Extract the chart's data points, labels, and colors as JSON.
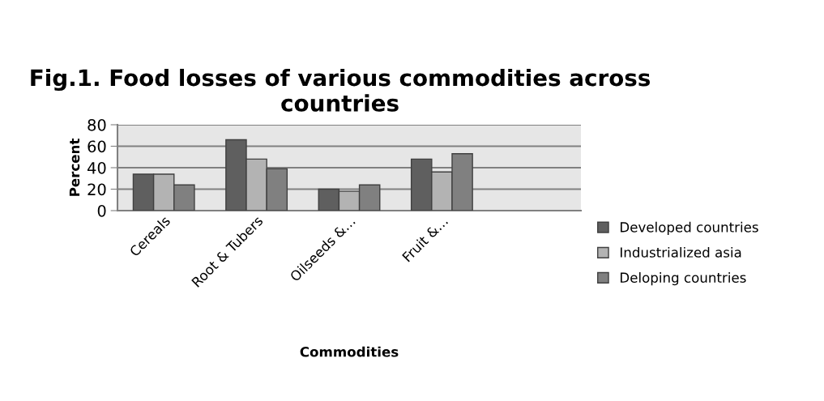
{
  "chart_data": {
    "type": "bar",
    "title": "Fig.1. Food losses of various commodities across countries",
    "xlabel": "Commodities",
    "ylabel": "Percent",
    "categories": [
      "Cereals",
      "Root & Tubers",
      "Oilseeds &…",
      "Fruit &…",
      null
    ],
    "series": [
      {
        "name": "Developed countries",
        "color": "#5f5f5f",
        "values": [
          34,
          66,
          20,
          48,
          null
        ]
      },
      {
        "name": "Industrialized asia",
        "color": "#b3b3b3",
        "values": [
          34,
          48,
          18,
          36,
          null
        ]
      },
      {
        "name": "Deloping countries",
        "color": "#808080",
        "values": [
          24,
          39,
          24,
          53,
          null
        ]
      }
    ],
    "ylim": [
      0,
      80
    ],
    "yticks": [
      0,
      20,
      40,
      60,
      80
    ],
    "grid": "y",
    "legend": "right"
  }
}
